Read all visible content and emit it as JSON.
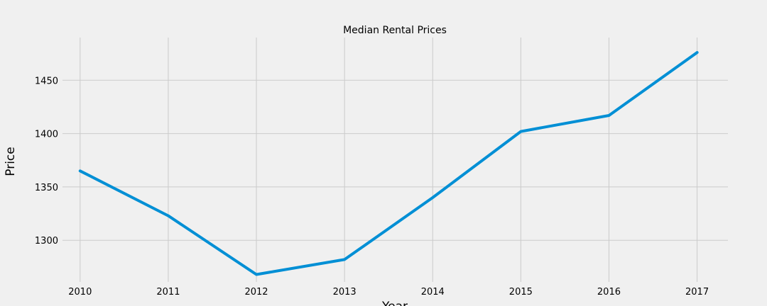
{
  "chart_data": {
    "type": "line",
    "title": "Median Rental Prices",
    "xlabel": "Year",
    "ylabel": "Price",
    "x": [
      2010,
      2011,
      2012,
      2013,
      2014,
      2015,
      2016,
      2017
    ],
    "series": [
      {
        "values": [
          1365,
          1323,
          1268,
          1282,
          1340,
          1402,
          1417,
          1476
        ]
      }
    ],
    "xlim": [
      2009.8,
      2017.35
    ],
    "ylim": [
      1261,
      1490
    ],
    "yticks": [
      1300,
      1350,
      1400,
      1450
    ],
    "xticks": [
      2010,
      2011,
      2012,
      2013,
      2014,
      2015,
      2016,
      2017
    ],
    "grid": true,
    "colors": {
      "line": "#008fd5",
      "grid": "#cbcbcb",
      "background": "#f0f0f0"
    }
  }
}
